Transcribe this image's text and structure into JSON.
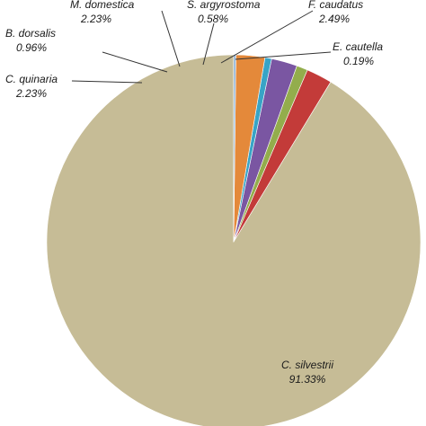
{
  "chart_data": {
    "type": "pie",
    "title": "",
    "start": "top",
    "direction": "counterclockwise",
    "slices": [
      {
        "name": "C. silvestrii",
        "label": "C. silvestrii",
        "pct_text": "91.33%",
        "value": 91.33,
        "color": "#c6bc96"
      },
      {
        "name": "C. quinaria",
        "label": "C. quinaria",
        "pct_text": "2.23%",
        "value": 2.23,
        "color": "#c33b39"
      },
      {
        "name": "B. dorsalis",
        "label": "B. dorsalis",
        "pct_text": "0.96%",
        "value": 0.96,
        "color": "#93ad4c"
      },
      {
        "name": "M. domestica",
        "label": "M. domestica",
        "pct_text": "2.23%",
        "value": 2.23,
        "color": "#7a56a2"
      },
      {
        "name": "S. argyrostoma",
        "label": "S. argyrostoma",
        "pct_text": "0.58%",
        "value": 0.58,
        "color": "#38a4c6"
      },
      {
        "name": "F. caudatus",
        "label": "F. caudatus",
        "pct_text": "2.49%",
        "value": 2.49,
        "color": "#e4893a"
      },
      {
        "name": "E. cautella",
        "label": "E. cautella",
        "pct_text": "0.19%",
        "value": 0.19,
        "color": "#8eb3d8"
      }
    ]
  }
}
